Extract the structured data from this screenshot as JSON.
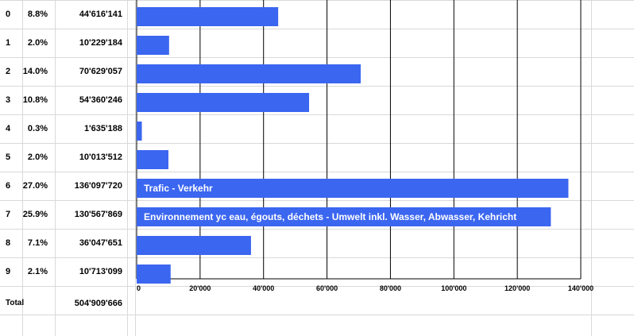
{
  "table": {
    "rows": [
      {
        "id": "0",
        "pct": "8.8%",
        "amount": "44'616'141"
      },
      {
        "id": "1",
        "pct": "2.0%",
        "amount": "10'229'184"
      },
      {
        "id": "2",
        "pct": "14.0%",
        "amount": "70'629'057"
      },
      {
        "id": "3",
        "pct": "10.8%",
        "amount": "54'360'246"
      },
      {
        "id": "4",
        "pct": "0.3%",
        "amount": "1'635'188"
      },
      {
        "id": "5",
        "pct": "2.0%",
        "amount": "10'013'512"
      },
      {
        "id": "6",
        "pct": "27.0%",
        "amount": "136'097'720"
      },
      {
        "id": "7",
        "pct": "25.9%",
        "amount": "130'567'869"
      },
      {
        "id": "8",
        "pct": "7.1%",
        "amount": "36'047'651"
      },
      {
        "id": "9",
        "pct": "2.1%",
        "amount": "10'713'099"
      }
    ],
    "total_label": "Total",
    "total_amount": "504'909'666"
  },
  "colors": {
    "bar": "#3b66f0",
    "grid": "#000000",
    "sheet_grid": "#d9d9d9"
  },
  "chart_data": {
    "type": "bar",
    "orientation": "horizontal",
    "categories": [
      "0",
      "1",
      "2",
      "3",
      "4",
      "5",
      "6",
      "7",
      "8",
      "9"
    ],
    "values": [
      44616141,
      10229184,
      70629057,
      54360246,
      1635188,
      10013512,
      136097720,
      130567869,
      36047651,
      10713099
    ],
    "data_labels": [
      "",
      "",
      "",
      "",
      "",
      "",
      "Trafic - Verkehr",
      "Environnement yc eau, égouts, déchets - Umwelt inkl. Wasser, Abwasser, Kehricht",
      "",
      ""
    ],
    "xlim": [
      0,
      140000000
    ],
    "xticks": [
      0,
      20000000,
      40000000,
      60000000,
      80000000,
      100000000,
      120000000,
      140000000
    ],
    "xtick_labels": [
      "0",
      "20'000",
      "40'000",
      "60'000",
      "80'000",
      "100'000",
      "120'000",
      "140'000"
    ],
    "grid": true
  }
}
